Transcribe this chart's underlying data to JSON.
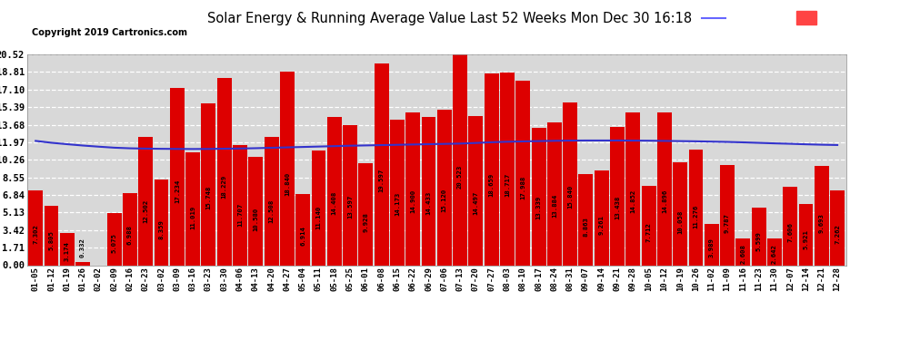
{
  "title": "Solar Energy & Running Average Value Last 52 Weeks Mon Dec 30 16:18",
  "copyright": "Copyright 2019 Cartronics.com",
  "bar_color": "#dd0000",
  "avg_line_color": "#3333cc",
  "background_color": "#ffffff",
  "plot_bg_color": "#d8d8d8",
  "ylim": [
    0.0,
    20.52
  ],
  "yticks": [
    0.0,
    1.71,
    3.42,
    5.13,
    6.84,
    8.55,
    10.26,
    11.97,
    13.68,
    15.39,
    17.1,
    18.81,
    20.52
  ],
  "categories": [
    "01-05",
    "01-12",
    "01-19",
    "01-26",
    "02-02",
    "02-09",
    "02-16",
    "02-23",
    "03-02",
    "03-09",
    "03-16",
    "03-23",
    "03-30",
    "04-06",
    "04-13",
    "04-20",
    "04-27",
    "05-04",
    "05-11",
    "05-18",
    "05-25",
    "06-01",
    "06-08",
    "06-15",
    "06-22",
    "06-29",
    "07-06",
    "07-13",
    "07-20",
    "07-27",
    "08-03",
    "08-10",
    "08-17",
    "08-24",
    "08-31",
    "09-07",
    "09-14",
    "09-21",
    "09-28",
    "10-05",
    "10-12",
    "10-19",
    "10-26",
    "11-02",
    "11-09",
    "11-16",
    "11-23",
    "11-30",
    "12-07",
    "12-14",
    "12-21",
    "12-28"
  ],
  "values": [
    7.302,
    5.805,
    3.174,
    0.332,
    0.0,
    5.075,
    6.988,
    12.502,
    8.359,
    17.234,
    11.019,
    15.748,
    18.229,
    11.707,
    10.58,
    12.508,
    18.84,
    6.914,
    11.14,
    14.408,
    13.597,
    9.928,
    19.597,
    14.173,
    14.9,
    14.433,
    15.12,
    20.523,
    14.497,
    18.659,
    18.717,
    17.988,
    13.339,
    13.884,
    15.84,
    8.863,
    9.261,
    13.438,
    14.852,
    7.712,
    14.896,
    10.058,
    11.276,
    3.989,
    9.787,
    2.608,
    5.599,
    2.642,
    7.606,
    5.921,
    9.693,
    7.262
  ],
  "avg_values": [
    12.1,
    11.92,
    11.78,
    11.65,
    11.54,
    11.44,
    11.38,
    11.35,
    11.33,
    11.32,
    11.31,
    11.32,
    11.34,
    11.36,
    11.39,
    11.43,
    11.47,
    11.51,
    11.55,
    11.59,
    11.63,
    11.66,
    11.69,
    11.72,
    11.75,
    11.78,
    11.81,
    11.84,
    11.9,
    11.97,
    12.02,
    12.05,
    12.08,
    12.11,
    12.13,
    12.14,
    12.14,
    12.14,
    12.13,
    12.12,
    12.1,
    12.08,
    12.06,
    12.03,
    12.0,
    11.96,
    11.91,
    11.86,
    11.82,
    11.77,
    11.73,
    11.7
  ],
  "legend_avg_bg": "#000099",
  "legend_weekly_bg": "#cc0000",
  "label_color": "#000000",
  "grid_color": "#ffffff"
}
